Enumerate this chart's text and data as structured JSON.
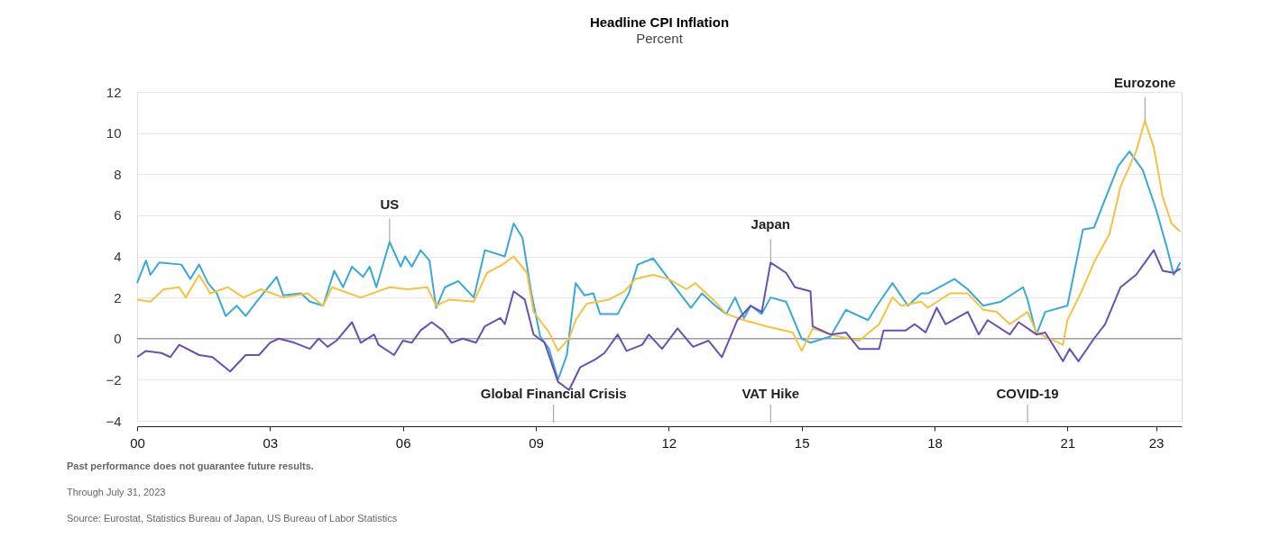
{
  "chart_data": {
    "type": "line",
    "title": "Headline CPI Inflation",
    "subtitle": "Percent",
    "xlim": [
      2000,
      2023.58
    ],
    "xticks": [
      {
        "value": 2000,
        "label": "00"
      },
      {
        "value": 2003,
        "label": "03"
      },
      {
        "value": 2006,
        "label": "06"
      },
      {
        "value": 2009,
        "label": "09"
      },
      {
        "value": 2012,
        "label": "12"
      },
      {
        "value": 2015,
        "label": "15"
      },
      {
        "value": 2018,
        "label": "18"
      },
      {
        "value": 2021,
        "label": "21"
      },
      {
        "value": 2023,
        "label": "23"
      }
    ],
    "ylim": [
      -4,
      12
    ],
    "yticks": [
      -4,
      -2,
      0,
      2,
      4,
      6,
      8,
      10,
      12
    ],
    "grid": "y",
    "legend": false,
    "line_style": "solid",
    "marker": "none",
    "ref_lines": [
      {
        "axis": "y",
        "value": 0,
        "color": "#7f7f7f"
      },
      {
        "axis": "x",
        "value": 2009.4,
        "label": "Global Financial Crisis",
        "color": "#999999"
      },
      {
        "axis": "x",
        "value": 2014.3,
        "label": "VAT Hike",
        "color": "#999999"
      },
      {
        "axis": "x",
        "value": 2020.1,
        "label": "COVID-19",
        "color": "#999999"
      }
    ],
    "series": [
      {
        "name": "US",
        "color": "#3aa8d8",
        "x": [
          2000.0,
          2000.2,
          2000.3,
          2000.5,
          2001.0,
          2001.2,
          2001.4,
          2001.6,
          2001.8,
          2002.0,
          2002.25,
          2002.45,
          2002.7,
          2003.15,
          2003.3,
          2003.7,
          2003.9,
          2004.2,
          2004.45,
          2004.65,
          2004.85,
          2005.1,
          2005.25,
          2005.4,
          2005.7,
          2005.95,
          2006.05,
          2006.2,
          2006.4,
          2006.6,
          2006.75,
          2006.95,
          2007.25,
          2007.6,
          2007.85,
          2008.3,
          2008.5,
          2008.7,
          2008.9,
          2009.1,
          2009.3,
          2009.5,
          2009.7,
          2009.9,
          2010.1,
          2010.3,
          2010.45,
          2010.85,
          2011.1,
          2011.3,
          2011.65,
          2012.0,
          2012.5,
          2012.75,
          2013.05,
          2013.3,
          2013.5,
          2013.7,
          2013.85,
          2014.1,
          2014.3,
          2014.65,
          2015.0,
          2015.2,
          2015.65,
          2016.0,
          2016.5,
          2016.7,
          2017.05,
          2017.4,
          2017.7,
          2017.85,
          2018.45,
          2018.75,
          2019.1,
          2019.5,
          2020.0,
          2020.1,
          2020.3,
          2020.5,
          2021.0,
          2021.35,
          2021.6,
          2021.8,
          2022.15,
          2022.4,
          2022.7,
          2023.0,
          2023.25,
          2023.4,
          2023.55
        ],
        "values": [
          2.7,
          3.8,
          3.1,
          3.7,
          3.6,
          2.9,
          3.6,
          2.7,
          2.2,
          1.1,
          1.6,
          1.1,
          1.8,
          3.0,
          2.1,
          2.2,
          1.8,
          1.6,
          3.3,
          2.5,
          3.5,
          3.0,
          3.5,
          2.5,
          4.7,
          3.5,
          4.0,
          3.5,
          4.3,
          3.8,
          1.5,
          2.5,
          2.8,
          2.0,
          4.3,
          4.0,
          5.6,
          4.9,
          2.2,
          0.1,
          -0.5,
          -2.0,
          -0.8,
          2.7,
          2.1,
          2.2,
          1.2,
          1.2,
          2.2,
          3.6,
          3.9,
          2.9,
          1.5,
          2.2,
          1.6,
          1.2,
          2.0,
          1.0,
          1.6,
          1.2,
          2.0,
          1.8,
          0.0,
          -0.2,
          0.1,
          1.4,
          0.9,
          1.6,
          2.7,
          1.6,
          2.2,
          2.2,
          2.9,
          2.4,
          1.6,
          1.8,
          2.5,
          1.9,
          0.2,
          1.3,
          1.6,
          5.3,
          5.4,
          6.5,
          8.4,
          9.1,
          8.2,
          6.3,
          4.4,
          3.1,
          3.7
        ]
      },
      {
        "name": "Eurozone",
        "color": "#f5c242",
        "x": [
          2000.0,
          2000.3,
          2000.6,
          2000.95,
          2001.1,
          2001.4,
          2001.65,
          2002.05,
          2002.4,
          2002.8,
          2003.3,
          2003.85,
          2004.2,
          2004.4,
          2005.05,
          2005.7,
          2006.1,
          2006.55,
          2006.75,
          2007.05,
          2007.6,
          2007.9,
          2008.25,
          2008.5,
          2008.8,
          2008.95,
          2009.3,
          2009.5,
          2009.75,
          2009.9,
          2010.15,
          2010.65,
          2011.0,
          2011.25,
          2011.65,
          2012.0,
          2012.4,
          2012.6,
          2013.0,
          2013.3,
          2013.7,
          2014.2,
          2014.8,
          2015.0,
          2015.25,
          2015.65,
          2016.3,
          2016.75,
          2017.05,
          2017.25,
          2017.7,
          2017.85,
          2018.35,
          2018.75,
          2019.1,
          2019.4,
          2019.7,
          2020.1,
          2020.3,
          2020.9,
          2021.0,
          2021.3,
          2021.6,
          2021.95,
          2022.2,
          2022.55,
          2022.75,
          2022.95,
          2023.15,
          2023.35,
          2023.55
        ],
        "values": [
          1.9,
          1.8,
          2.4,
          2.5,
          2.0,
          3.1,
          2.2,
          2.5,
          2.0,
          2.4,
          2.0,
          2.2,
          1.6,
          2.5,
          2.0,
          2.5,
          2.4,
          2.5,
          1.6,
          1.9,
          1.8,
          3.2,
          3.6,
          4.0,
          3.2,
          1.3,
          0.3,
          -0.6,
          0.0,
          0.9,
          1.7,
          1.9,
          2.3,
          2.9,
          3.1,
          2.9,
          2.4,
          2.7,
          1.9,
          1.2,
          0.9,
          0.6,
          0.3,
          -0.6,
          0.5,
          0.2,
          -0.1,
          0.7,
          2.0,
          1.6,
          1.8,
          1.5,
          2.2,
          2.2,
          1.4,
          1.3,
          0.7,
          1.3,
          0.3,
          -0.3,
          0.9,
          2.2,
          3.7,
          5.1,
          7.4,
          9.1,
          10.6,
          9.3,
          6.9,
          5.6,
          5.2
        ]
      },
      {
        "name": "Japan",
        "color": "#6a4fb5",
        "x": [
          2000.0,
          2000.2,
          2000.55,
          2000.75,
          2000.95,
          2001.4,
          2001.7,
          2002.1,
          2002.45,
          2002.75,
          2003.0,
          2003.2,
          2003.55,
          2003.9,
          2004.1,
          2004.3,
          2004.5,
          2004.85,
          2005.05,
          2005.35,
          2005.45,
          2005.8,
          2006.0,
          2006.2,
          2006.4,
          2006.65,
          2006.9,
          2007.1,
          2007.35,
          2007.65,
          2007.85,
          2008.2,
          2008.3,
          2008.5,
          2008.75,
          2008.95,
          2009.2,
          2009.5,
          2009.75,
          2010.0,
          2010.35,
          2010.55,
          2010.85,
          2011.05,
          2011.4,
          2011.55,
          2011.85,
          2012.2,
          2012.55,
          2012.9,
          2013.2,
          2013.55,
          2013.85,
          2014.1,
          2014.3,
          2014.65,
          2014.85,
          2015.2,
          2015.25,
          2015.65,
          2016.0,
          2016.3,
          2016.75,
          2016.85,
          2017.35,
          2017.55,
          2017.8,
          2018.05,
          2018.25,
          2018.75,
          2019.0,
          2019.2,
          2019.7,
          2019.9,
          2020.3,
          2020.5,
          2020.9,
          2021.05,
          2021.25,
          2021.6,
          2021.85,
          2022.2,
          2022.55,
          2022.95,
          2023.15,
          2023.4,
          2023.55
        ],
        "values": [
          -0.9,
          -0.6,
          -0.7,
          -0.9,
          -0.3,
          -0.8,
          -0.9,
          -1.6,
          -0.8,
          -0.8,
          -0.2,
          0.0,
          -0.2,
          -0.5,
          0.0,
          -0.4,
          -0.1,
          0.8,
          -0.2,
          0.2,
          -0.3,
          -0.8,
          -0.1,
          -0.2,
          0.4,
          0.8,
          0.4,
          -0.2,
          0.0,
          -0.2,
          0.6,
          1.0,
          0.7,
          2.3,
          1.9,
          0.2,
          -0.2,
          -2.1,
          -2.5,
          -1.4,
          -1.0,
          -0.7,
          0.2,
          -0.6,
          -0.3,
          0.2,
          -0.5,
          0.5,
          -0.4,
          -0.1,
          -0.9,
          0.9,
          1.6,
          1.3,
          3.7,
          3.2,
          2.5,
          2.3,
          0.6,
          0.2,
          0.3,
          -0.5,
          -0.5,
          0.4,
          0.4,
          0.7,
          0.3,
          1.5,
          0.7,
          1.3,
          0.2,
          0.9,
          0.2,
          0.8,
          0.2,
          0.3,
          -1.1,
          -0.5,
          -1.1,
          0.0,
          0.7,
          2.5,
          3.1,
          4.3,
          3.3,
          3.2,
          3.4
        ]
      }
    ],
    "annotations": [
      "Past performance does not guarantee future results.",
      "Through July 31, 2023",
      "Source: Eurostat, Statistics Bureau of Japan, US Bureau of Labor Statistics"
    ]
  }
}
